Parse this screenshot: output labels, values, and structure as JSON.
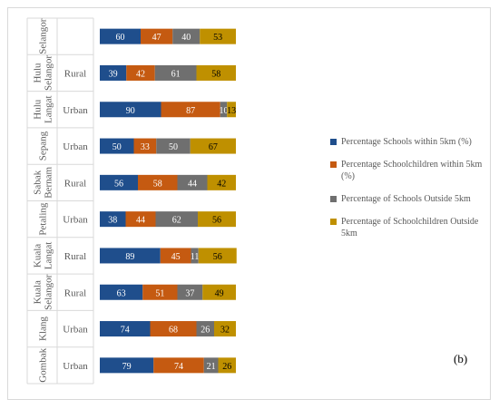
{
  "chart_data": {
    "type": "bar",
    "stacked": true,
    "orientation": "horizontal",
    "rows": [
      {
        "district": "Selangor",
        "area": "",
        "values": [
          60,
          47,
          40,
          53
        ]
      },
      {
        "district": "Hulu Selangor",
        "area": "Rural",
        "values": [
          39,
          42,
          61,
          58
        ]
      },
      {
        "district": "Hulu Langat",
        "area": "Urban",
        "values": [
          90,
          87,
          10,
          13
        ]
      },
      {
        "district": "Sepang",
        "area": "Urban",
        "values": [
          50,
          33,
          50,
          67
        ]
      },
      {
        "district": "Sabak Bernam",
        "area": "Rural",
        "values": [
          56,
          58,
          44,
          42
        ]
      },
      {
        "district": "Petaling",
        "area": "Urban",
        "values": [
          38,
          44,
          62,
          56
        ]
      },
      {
        "district": "Kuala Langat",
        "area": "Rural",
        "values": [
          89,
          45,
          11,
          56
        ]
      },
      {
        "district": "Kuala Selangor",
        "area": "Rural",
        "values": [
          63,
          51,
          37,
          49
        ]
      },
      {
        "district": "Klang",
        "area": "Urban",
        "values": [
          74,
          68,
          26,
          32
        ]
      },
      {
        "district": "Gombak",
        "area": "Urban",
        "values": [
          79,
          74,
          21,
          26
        ]
      }
    ],
    "series": [
      {
        "name": "Percentage Schools within 5km (%)",
        "color": "#1f4e8c"
      },
      {
        "name": "Percentage Schoolchildren within 5km (%)",
        "color": "#c55a11"
      },
      {
        "name": "Percentage of Schools Outside 5km",
        "color": "#6f6f6f"
      },
      {
        "name": "Percentage of Schoolchildren Outside 5km",
        "color": "#bf9000"
      }
    ],
    "panel_label": "(b)",
    "legend_position": "right"
  }
}
